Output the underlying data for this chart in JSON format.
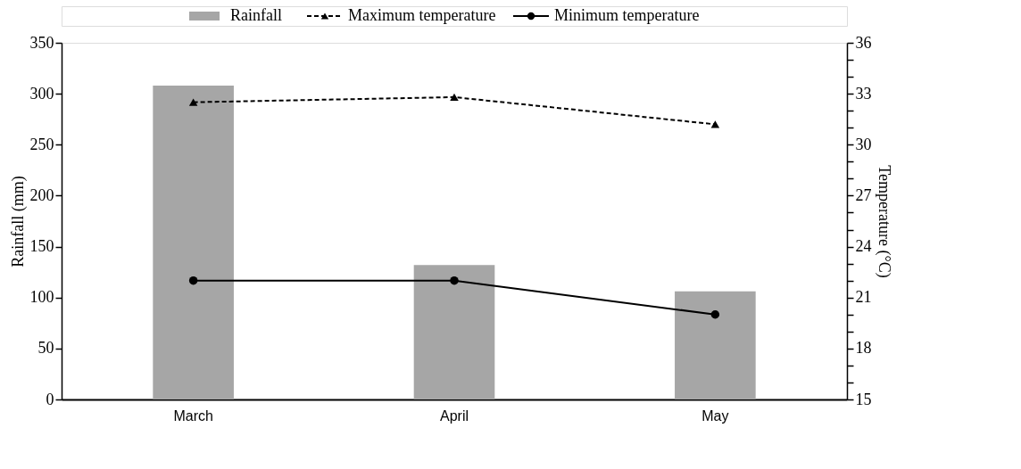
{
  "chart_data": {
    "type": "bar",
    "categories": [
      "March",
      "April",
      "May"
    ],
    "ylabel": "Rainfall (mm)",
    "y2label": "Temperature (°C)",
    "ylim": [
      0,
      350
    ],
    "yticks": [
      0,
      50,
      100,
      150,
      200,
      250,
      300,
      350
    ],
    "y2lim": [
      15,
      36
    ],
    "y2ticks": [
      15,
      {
        "value": 16,
        "label": null
      },
      {
        "value": 17,
        "label": null
      },
      18,
      {
        "value": 19,
        "label": null
      },
      {
        "value": 20,
        "label": null
      },
      21,
      {
        "value": 22,
        "label": null
      },
      {
        "value": 23,
        "label": null
      },
      24,
      {
        "value": 25,
        "label": null
      },
      {
        "value": 26,
        "label": null
      },
      27,
      {
        "value": 28,
        "label": null
      },
      {
        "value": 29,
        "label": null
      },
      30,
      {
        "value": 31,
        "label": null
      },
      {
        "value": 32,
        "label": null
      },
      33,
      {
        "value": 34,
        "label": null
      },
      {
        "value": 35,
        "label": null
      },
      36
    ],
    "legend": "top",
    "grid": false,
    "series": [
      {
        "name": "Rainfall",
        "type": "bar",
        "color": "#a6a6a6",
        "values": [
          308,
          132,
          106
        ]
      },
      {
        "name": "Maximum temperature",
        "type": "line",
        "axis": "y2",
        "color": "#000000",
        "marker": "triangle",
        "line_style": "dashed",
        "values": [
          32.5,
          32.8,
          31.2
        ]
      },
      {
        "name": "Minimum temperature",
        "type": "line",
        "axis": "y2",
        "color": "#000000",
        "marker": "circle",
        "line_style": "solid",
        "values": [
          22.0,
          22.0,
          20.0
        ]
      }
    ]
  }
}
